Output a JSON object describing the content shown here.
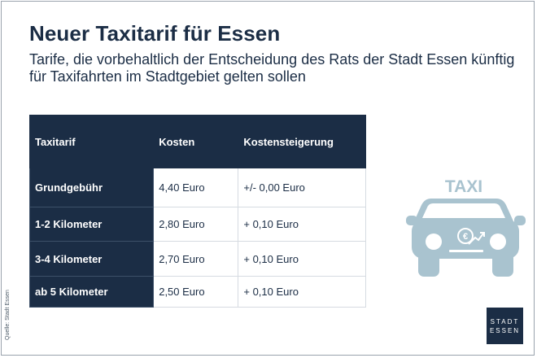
{
  "title": "Neuer Taxitarif für Essen",
  "subtitle": "Tarife, die vorbehaltlich der Entscheidung des Rats der Stadt Essen künftig für Taxifahrten im Stadtgebiet gelten sollen",
  "table": {
    "headers": [
      "Taxitarif",
      "Kosten",
      "Kostensteigerung"
    ],
    "rows": [
      [
        "Grundgebühr",
        "4,40 Euro",
        "+/- 0,00 Euro"
      ],
      [
        "1-2 Kilometer",
        "2,80 Euro",
        "+ 0,10 Euro"
      ],
      [
        "3-4 Kilometer",
        "2,70 Euro",
        "+ 0,10 Euro"
      ],
      [
        "ab 5 Kilometer",
        "2,50 Euro",
        "+ 0,10 Euro"
      ]
    ]
  },
  "illustration": {
    "sign_text": "TAXI",
    "icon": "taxi-car-icon",
    "color": "#a9c3cf"
  },
  "source": "Quelle: Stadt Essen",
  "logo": {
    "line1": "STADT",
    "line2": "ESSEN"
  },
  "colors": {
    "navy": "#1b2d45",
    "light_blue": "#a9c3cf"
  }
}
